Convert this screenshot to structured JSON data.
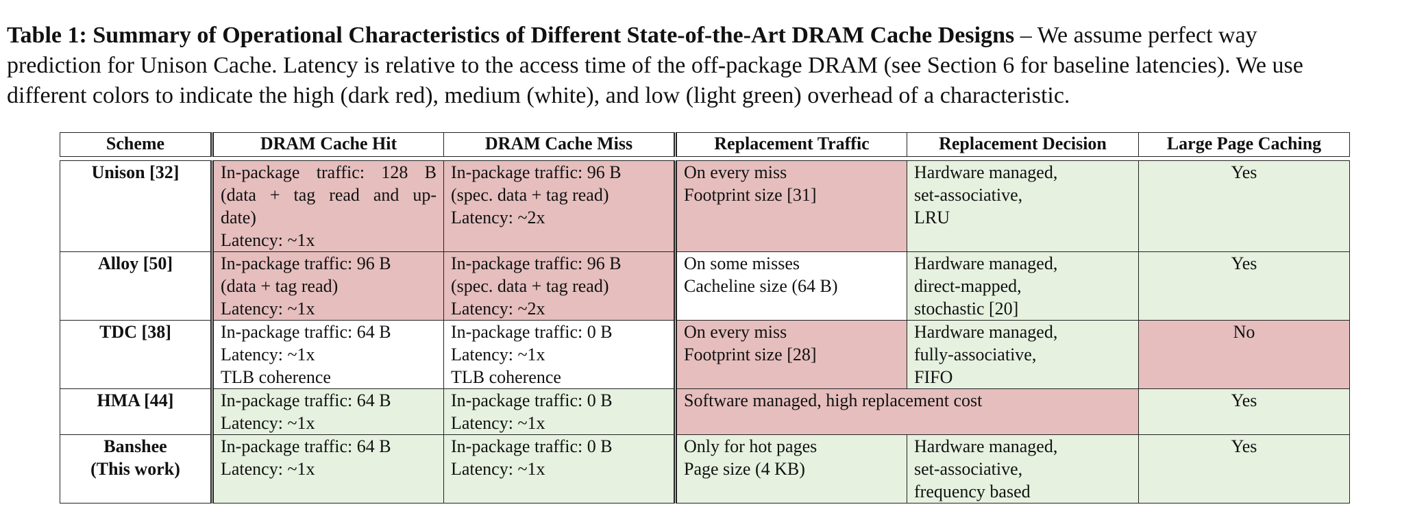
{
  "caption": {
    "bold": "Table 1: Summary of Operational Characteristics of Different State-of-the-Art DRAM Cache Designs",
    "dash": " – ",
    "line1_rest": "We assume perfect way",
    "line2": "prediction for Unison Cache. Latency is relative to the access time of the off-package DRAM (see Section 6 for baseline latencies). We use",
    "line3": "different colors to indicate the high (dark red), medium (white), and low (light green) overhead of a characteristic."
  },
  "colors": {
    "high": "#e6bebe",
    "medium": "#ffffff",
    "low": "#e6f1e0"
  },
  "headers": [
    "Scheme",
    "DRAM Cache Hit",
    "DRAM Cache Miss",
    "Replacement Traffic",
    "Replacement Decision",
    "Large Page Caching"
  ],
  "rows": [
    {
      "scheme": [
        "Unison [32]"
      ],
      "hit": [
        "In-package traffic: 128 B",
        "(data + tag read and up-",
        "date)",
        "Latency: ~1x"
      ],
      "miss": [
        "In-package traffic: 96 B",
        "(spec. data + tag read)",
        "Latency: ~2x"
      ],
      "traffic": [
        "On every miss",
        "Footprint size [31]"
      ],
      "decision": [
        "Hardware managed,",
        "set-associative,",
        "LRU"
      ],
      "large_page": "Yes"
    },
    {
      "scheme": [
        "Alloy [50]"
      ],
      "hit": [
        "In-package traffic: 96 B",
        "(data + tag read)",
        "Latency: ~1x"
      ],
      "miss": [
        "In-package traffic: 96 B",
        "(spec. data + tag read)",
        "Latency: ~2x"
      ],
      "traffic": [
        "On some misses",
        "Cacheline size (64 B)"
      ],
      "decision": [
        "Hardware managed,",
        "direct-mapped,",
        "stochastic [20]"
      ],
      "large_page": "Yes"
    },
    {
      "scheme": [
        "TDC [38]"
      ],
      "hit": [
        "In-package traffic: 64 B",
        "Latency: ~1x",
        "TLB coherence"
      ],
      "miss": [
        "In-package traffic: 0 B",
        "Latency: ~1x",
        "TLB coherence"
      ],
      "traffic": [
        "On every miss",
        "Footprint size [28]"
      ],
      "decision": [
        "Hardware managed,",
        "fully-associative,",
        "FIFO"
      ],
      "large_page": "No"
    },
    {
      "scheme": [
        "HMA [44]"
      ],
      "hit": [
        "In-package traffic: 64 B",
        "Latency: ~1x"
      ],
      "miss": [
        "In-package traffic: 0 B",
        "Latency: ~1x"
      ],
      "traffic_decision_merged": "Software managed, high replacement cost",
      "large_page": "Yes"
    },
    {
      "scheme": [
        "Banshee",
        "(This work)"
      ],
      "hit": [
        "In-package traffic: 64 B",
        "Latency: ~1x"
      ],
      "miss": [
        "In-package traffic: 0 B",
        "Latency: ~1x"
      ],
      "traffic": [
        "Only for hot pages",
        "Page size (4 KB)"
      ],
      "decision": [
        "Hardware managed,",
        "set-associative,",
        "frequency based"
      ],
      "large_page": "Yes"
    }
  ]
}
